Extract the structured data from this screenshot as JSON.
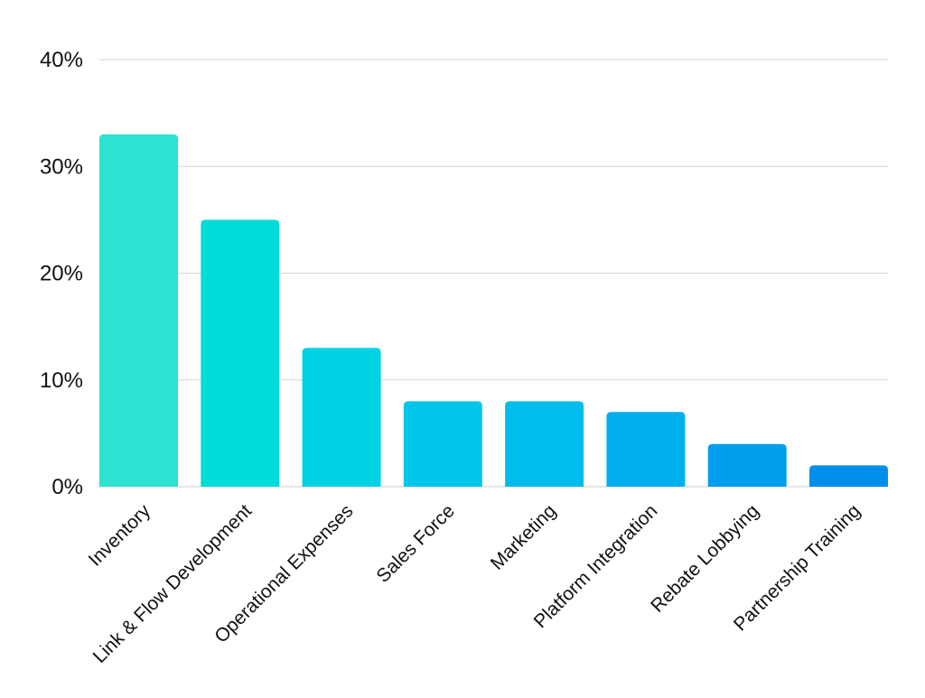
{
  "chart_data": {
    "type": "bar",
    "title": "",
    "xlabel": "",
    "ylabel": "",
    "categories": [
      "Inventory",
      "Link & Flow Development",
      "Operational Expenses",
      "Sales Force",
      "Marketing",
      "Platform Integration",
      "Rebate Lobbying",
      "Partnership Training"
    ],
    "values": [
      33,
      25,
      13,
      8,
      8,
      7,
      4,
      2
    ],
    "unit": "%",
    "ylim": [
      0,
      40
    ],
    "yticks": [
      0,
      10,
      20,
      30,
      40
    ],
    "ytick_labels": [
      "0%",
      "10%",
      "20%",
      "30%",
      "40%"
    ],
    "grid": true,
    "legend": "none",
    "colors": [
      "#2de2d0",
      "#00dcd8",
      "#00d2e4",
      "#00c7ea",
      "#00bdee",
      "#00afee",
      "#009fee",
      "#008eea"
    ]
  }
}
